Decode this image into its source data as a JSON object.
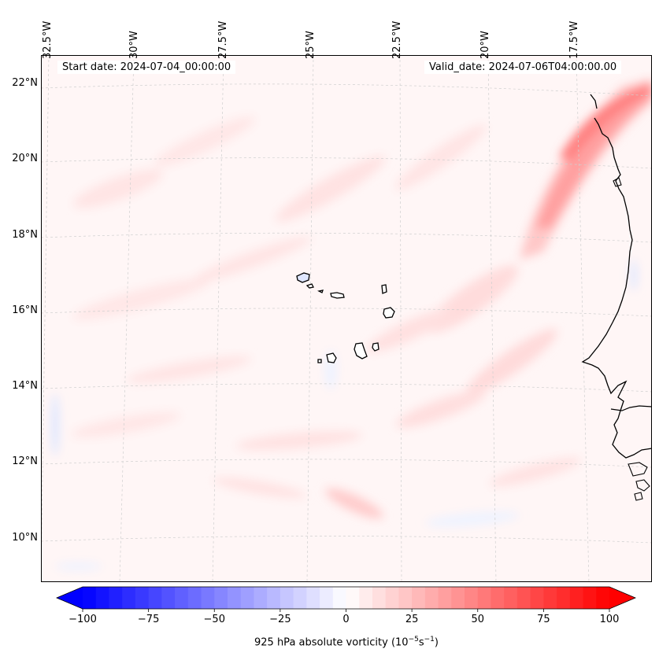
{
  "map": {
    "start_date": "Start date: 2024-07-04_00:00:00",
    "valid_date": "Valid_date: 2024-07-06T04:00:00.00",
    "longitude_labels": [
      "32.5°W",
      "30°W",
      "27.5°W",
      "25°W",
      "22.5°W",
      "20°W",
      "17.5°W"
    ],
    "latitude_labels": [
      "22°N",
      "20°N",
      "18°N",
      "16°N",
      "14°N",
      "12°N",
      "10°N"
    ],
    "field": "925 hPa absolute vorticity",
    "features": [
      "Cabo Verde islands",
      "West African coastline"
    ]
  },
  "colorbar": {
    "label_prefix": "925 hPa absolute vorticity (10",
    "label_exp1": "−5",
    "label_mid": "s",
    "label_exp2": "−1",
    "label_suffix": ")",
    "ticks": [
      "−100",
      "−75",
      "−50",
      "−25",
      "0",
      "25",
      "50",
      "75",
      "100"
    ],
    "tick_values": [
      -100,
      -75,
      -50,
      -25,
      0,
      25,
      50,
      75,
      100
    ],
    "min": -100,
    "max": 100,
    "cmap_low": "#0000ff",
    "cmap_mid": "#ffffff",
    "cmap_high": "#ff0000"
  },
  "colors": {
    "background_pink": "#fff3f3",
    "vorticity_band": "#ff6e6e",
    "coast": "#000000",
    "grid": "#cccccc"
  }
}
